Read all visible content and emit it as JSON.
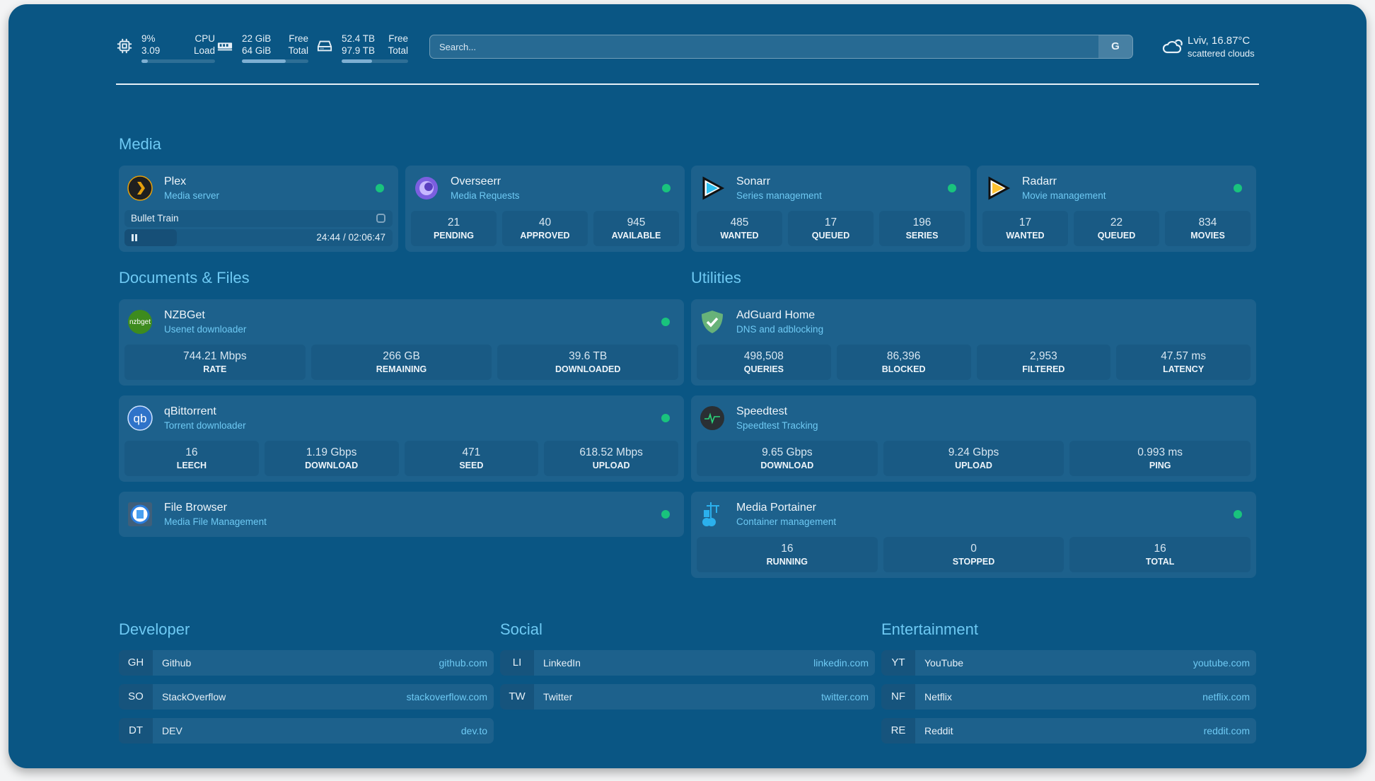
{
  "header": {
    "cpu": {
      "icon": "cpu-icon",
      "percent": "9%",
      "load": "3.09",
      "label1": "CPU",
      "label2": "Load",
      "fill": 9
    },
    "memory": {
      "icon": "memory-icon",
      "free": "22 GiB",
      "total": "64 GiB",
      "label1": "Free",
      "label2": "Total",
      "fill": 66
    },
    "disk": {
      "icon": "hard-drive-icon",
      "free": "52.4 TB",
      "total": "97.9 TB",
      "label1": "Free",
      "label2": "Total",
      "fill": 46
    },
    "search": {
      "placeholder": "Search...",
      "engine_button": "G"
    },
    "weather": {
      "icon": "cloud-icon",
      "location": "Lviv, 16.87°C",
      "condition": "scattered clouds"
    }
  },
  "sections": {
    "media": "Media",
    "documents": "Documents & Files",
    "utilities": "Utilities",
    "developer": "Developer",
    "social": "Social",
    "entertainment": "Entertainment"
  },
  "plex": {
    "title": "Plex",
    "subtitle": "Media server",
    "now_playing": "Bullet Train",
    "progress": "24:44 / 02:06:47",
    "progress_fraction": 0.195
  },
  "services": [
    {
      "id": "overseerr",
      "title": "Overseerr",
      "subtitle": "Media Requests",
      "stats": [
        {
          "v": "21",
          "k": "PENDING"
        },
        {
          "v": "40",
          "k": "APPROVED"
        },
        {
          "v": "945",
          "k": "AVAILABLE"
        }
      ]
    },
    {
      "id": "sonarr",
      "title": "Sonarr",
      "subtitle": "Series management",
      "stats": [
        {
          "v": "485",
          "k": "WANTED"
        },
        {
          "v": "17",
          "k": "QUEUED"
        },
        {
          "v": "196",
          "k": "SERIES"
        }
      ]
    },
    {
      "id": "radarr",
      "title": "Radarr",
      "subtitle": "Movie management",
      "stats": [
        {
          "v": "17",
          "k": "WANTED"
        },
        {
          "v": "22",
          "k": "QUEUED"
        },
        {
          "v": "834",
          "k": "MOVIES"
        }
      ]
    },
    {
      "id": "nzbget",
      "title": "NZBGet",
      "subtitle": "Usenet downloader",
      "stats": [
        {
          "v": "744.21 Mbps",
          "k": "RATE"
        },
        {
          "v": "266 GB",
          "k": "REMAINING"
        },
        {
          "v": "39.6 TB",
          "k": "DOWNLOADED"
        }
      ]
    },
    {
      "id": "qbittorrent",
      "title": "qBittorrent",
      "subtitle": "Torrent downloader",
      "stats": [
        {
          "v": "16",
          "k": "LEECH"
        },
        {
          "v": "1.19 Gbps",
          "k": "DOWNLOAD"
        },
        {
          "v": "471",
          "k": "SEED"
        },
        {
          "v": "618.52 Mbps",
          "k": "UPLOAD"
        }
      ]
    },
    {
      "id": "filebrowser",
      "title": "File Browser",
      "subtitle": "Media File Management",
      "stats": []
    },
    {
      "id": "adguard",
      "title": "AdGuard Home",
      "subtitle": "DNS and adblocking",
      "stats": [
        {
          "v": "498,508",
          "k": "QUERIES"
        },
        {
          "v": "86,396",
          "k": "BLOCKED"
        },
        {
          "v": "2,953",
          "k": "FILTERED"
        },
        {
          "v": "47.57 ms",
          "k": "LATENCY"
        }
      ]
    },
    {
      "id": "speedtest",
      "title": "Speedtest",
      "subtitle": "Speedtest Tracking",
      "stats": [
        {
          "v": "9.65 Gbps",
          "k": "DOWNLOAD"
        },
        {
          "v": "9.24 Gbps",
          "k": "UPLOAD"
        },
        {
          "v": "0.993 ms",
          "k": "PING"
        }
      ]
    },
    {
      "id": "portainer",
      "title": "Media Portainer",
      "subtitle": "Container management",
      "stats": [
        {
          "v": "16",
          "k": "RUNNING"
        },
        {
          "v": "0",
          "k": "STOPPED"
        },
        {
          "v": "16",
          "k": "TOTAL"
        }
      ]
    }
  ],
  "bookmarks": {
    "developer": [
      {
        "abbr": "GH",
        "name": "Github",
        "url": "github.com"
      },
      {
        "abbr": "SO",
        "name": "StackOverflow",
        "url": "stackoverflow.com"
      },
      {
        "abbr": "DT",
        "name": "DEV",
        "url": "dev.to"
      }
    ],
    "social": [
      {
        "abbr": "LI",
        "name": "LinkedIn",
        "url": "linkedin.com"
      },
      {
        "abbr": "TW",
        "name": "Twitter",
        "url": "twitter.com"
      }
    ],
    "entertainment": [
      {
        "abbr": "YT",
        "name": "YouTube",
        "url": "youtube.com"
      },
      {
        "abbr": "NF",
        "name": "Netflix",
        "url": "netflix.com"
      },
      {
        "abbr": "RE",
        "name": "Reddit",
        "url": "reddit.com"
      }
    ]
  },
  "colors": {
    "background": "#0a5684",
    "card": "#1d618c",
    "accent": "#6ec9f3",
    "status_ok": "#19c37d"
  }
}
